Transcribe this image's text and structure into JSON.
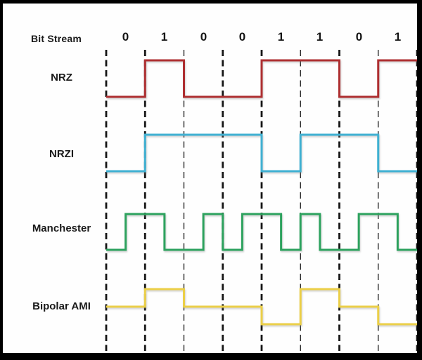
{
  "header": {
    "bit_stream_label": "Bit Stream"
  },
  "colors": {
    "nrz": "#ae2f31",
    "nrzi": "#3fb0d2",
    "manchester": "#2da25e",
    "bipolar_ami": "#ebcf48",
    "grid": "#161616",
    "text": "#1a1a1a",
    "border": "#000000",
    "background": "#fefefe"
  },
  "chart_data": {
    "type": "line",
    "subtype": "digital-timing-diagram",
    "bits": [
      "0",
      "1",
      "0",
      "0",
      "1",
      "1",
      "0",
      "1"
    ],
    "x_axis": "bit periods (8 bits, dashed vertical lines mark bit boundaries)",
    "series": [
      {
        "name": "NRZ",
        "color": "#ae2f31",
        "levels_per_bit": [
          0,
          1,
          0,
          0,
          1,
          1,
          0,
          1
        ],
        "levels_per_half_bit": [
          0,
          0,
          1,
          1,
          0,
          0,
          0,
          0,
          1,
          1,
          1,
          1,
          0,
          0,
          1,
          1
        ]
      },
      {
        "name": "NRZI",
        "color": "#3fb0d2",
        "levels_per_bit": [
          0,
          1,
          1,
          1,
          0,
          1,
          1,
          0
        ],
        "levels_per_half_bit": [
          0,
          0,
          1,
          1,
          1,
          1,
          1,
          1,
          0,
          0,
          1,
          1,
          1,
          1,
          0,
          0
        ]
      },
      {
        "name": "Manchester",
        "color": "#2da25e",
        "levels_per_half_bit": [
          0,
          1,
          1,
          0,
          0,
          1,
          0,
          1,
          1,
          0,
          1,
          0,
          0,
          1,
          1,
          0
        ]
      },
      {
        "name": "Bipolar AMI",
        "color": "#ebcf48",
        "levels_per_bit": [
          0,
          1,
          0,
          0,
          -1,
          1,
          0,
          -1
        ],
        "levels_per_half_bit": [
          0,
          0,
          1,
          1,
          0,
          0,
          0,
          0,
          -1,
          -1,
          1,
          1,
          0,
          0,
          -1,
          -1
        ]
      }
    ]
  }
}
